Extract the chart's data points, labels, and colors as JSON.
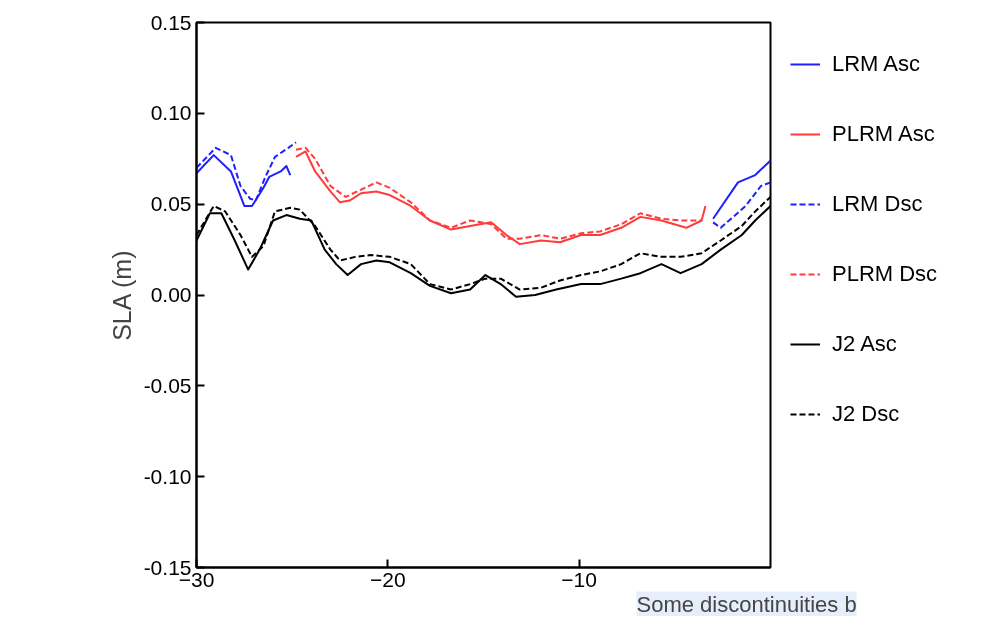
{
  "chart_data": {
    "type": "line",
    "ylabel": "SLA (m)",
    "xlim": [
      -30,
      0
    ],
    "ylim": [
      -0.15,
      0.15
    ],
    "xticks": [
      -30,
      -20,
      -10
    ],
    "yticks": [
      {
        "value": -0.15,
        "label": "-0.15"
      },
      {
        "value": -0.1,
        "label": "-0.10"
      },
      {
        "value": -0.05,
        "label": "-0.05"
      },
      {
        "value": 0,
        "label": "0.00"
      },
      {
        "value": 0.05,
        "label": "0.05"
      },
      {
        "value": 0.1,
        "label": "0.10"
      },
      {
        "value": 0.15,
        "label": "0.15"
      }
    ],
    "grid": false,
    "legend": "right",
    "marker": "none",
    "annotations": [
      "Some discontinuities b"
    ],
    "series": [
      {
        "name": "LRM Asc",
        "color": "#1f1fff",
        "line_style": "solid",
        "x": [
          -30,
          -29.1,
          -28.2,
          -27.5,
          -27.1,
          -26.5,
          -26.2,
          -25.6,
          -25.3,
          -25.1,
          null,
          -3.0,
          -1.7,
          -0.8,
          0
        ],
        "values": [
          0.067,
          0.077,
          0.068,
          0.049,
          0.049,
          0.059,
          0.065,
          0.068,
          0.071,
          0.066,
          null,
          0.042,
          0.062,
          0.066,
          0.074
        ]
      },
      {
        "name": "PLRM Asc",
        "color": "#ff3b3b",
        "line_style": "solid",
        "x": [
          -24.8,
          -24.3,
          -23.8,
          -23.0,
          -22.5,
          -22.0,
          -21.4,
          -20.6,
          -19.9,
          -18.8,
          -17.8,
          -16.7,
          -15.7,
          -14.6,
          -13.8,
          -13.1,
          -12.0,
          -11.0,
          -9.9,
          -8.9,
          -7.8,
          -6.8,
          -5.7,
          -4.4,
          -3.6,
          -3.4
        ],
        "values": [
          0.076,
          0.079,
          0.068,
          0.057,
          0.051,
          0.052,
          0.056,
          0.057,
          0.055,
          0.049,
          0.041,
          0.036,
          0.038,
          0.04,
          0.033,
          0.028,
          0.03,
          0.029,
          0.033,
          0.033,
          0.037,
          0.043,
          0.041,
          0.037,
          0.041,
          0.049
        ]
      },
      {
        "name": "LRM Dsc",
        "color": "#1f1fff",
        "line_style": "dashed",
        "x": [
          -30,
          -29.0,
          -28.2,
          -27.7,
          -27.2,
          -26.9,
          -26.4,
          -25.9,
          -25.2,
          -24.8,
          null,
          -3.0,
          -2.6,
          -1.3,
          -0.5,
          0
        ],
        "values": [
          0.07,
          0.081,
          0.077,
          0.06,
          0.053,
          0.052,
          0.065,
          0.076,
          0.081,
          0.084,
          null,
          0.04,
          0.037,
          0.049,
          0.06,
          0.062
        ]
      },
      {
        "name": "PLRM Dsc",
        "color": "#ff3b3b",
        "line_style": "dashed",
        "x": [
          -24.8,
          -24.3,
          -23.8,
          -23.0,
          -22.2,
          -21.4,
          -20.6,
          -19.9,
          -18.8,
          -17.8,
          -16.7,
          -15.7,
          -14.6,
          -13.8,
          -13.1,
          -12.0,
          -11.0,
          -9.9,
          -8.9,
          -7.8,
          -6.8,
          -5.7,
          -4.6,
          -3.6
        ],
        "values": [
          0.08,
          0.081,
          0.075,
          0.06,
          0.054,
          0.058,
          0.062,
          0.059,
          0.051,
          0.041,
          0.037,
          0.041,
          0.039,
          0.031,
          0.031,
          0.033,
          0.031,
          0.034,
          0.035,
          0.039,
          0.045,
          0.042,
          0.041,
          0.041
        ]
      },
      {
        "name": "J2 Asc",
        "color": "#000000",
        "line_style": "solid",
        "x": [
          -30,
          -29.3,
          -28.7,
          -28.0,
          -27.3,
          -26.7,
          -26.0,
          -25.3,
          -24.6,
          -24.0,
          -23.3,
          -22.7,
          -22.1,
          -21.4,
          -20.6,
          -19.9,
          -18.8,
          -17.8,
          -16.7,
          -15.7,
          -14.9,
          -14.1,
          -13.3,
          -12.3,
          -11.2,
          -9.9,
          -8.9,
          -7.8,
          -6.8,
          -5.7,
          -4.7,
          -3.6,
          -2.6,
          -1.5,
          -0.8,
          0
        ],
        "values": [
          0.03,
          0.045,
          0.045,
          0.03,
          0.014,
          0.025,
          0.041,
          0.044,
          0.042,
          0.041,
          0.025,
          0.017,
          0.011,
          0.017,
          0.019,
          0.018,
          0.012,
          0.005,
          0.001,
          0.003,
          0.011,
          0.006,
          -0.001,
          0.0,
          0.003,
          0.006,
          0.006,
          0.009,
          0.012,
          0.017,
          0.012,
          0.017,
          0.025,
          0.033,
          0.041,
          0.049
        ]
      },
      {
        "name": "J2 Dsc",
        "color": "#000000",
        "line_style": "dashed",
        "x": [
          -30,
          -29.1,
          -28.5,
          -27.7,
          -27.1,
          -26.5,
          -25.9,
          -25.1,
          -24.6,
          -23.8,
          -23.0,
          -22.5,
          -21.7,
          -20.9,
          -19.9,
          -18.8,
          -17.8,
          -16.7,
          -15.7,
          -14.9,
          -14.1,
          -13.1,
          -12.0,
          -11.0,
          -9.9,
          -8.9,
          -7.8,
          -6.8,
          -5.7,
          -4.7,
          -3.6,
          -2.6,
          -1.5,
          -0.8,
          0
        ],
        "values": [
          0.033,
          0.049,
          0.046,
          0.033,
          0.021,
          0.027,
          0.046,
          0.048,
          0.047,
          0.038,
          0.025,
          0.019,
          0.021,
          0.022,
          0.021,
          0.017,
          0.006,
          0.003,
          0.006,
          0.009,
          0.009,
          0.003,
          0.004,
          0.008,
          0.011,
          0.013,
          0.017,
          0.023,
          0.021,
          0.021,
          0.023,
          0.03,
          0.038,
          0.046,
          0.054
        ]
      }
    ]
  }
}
